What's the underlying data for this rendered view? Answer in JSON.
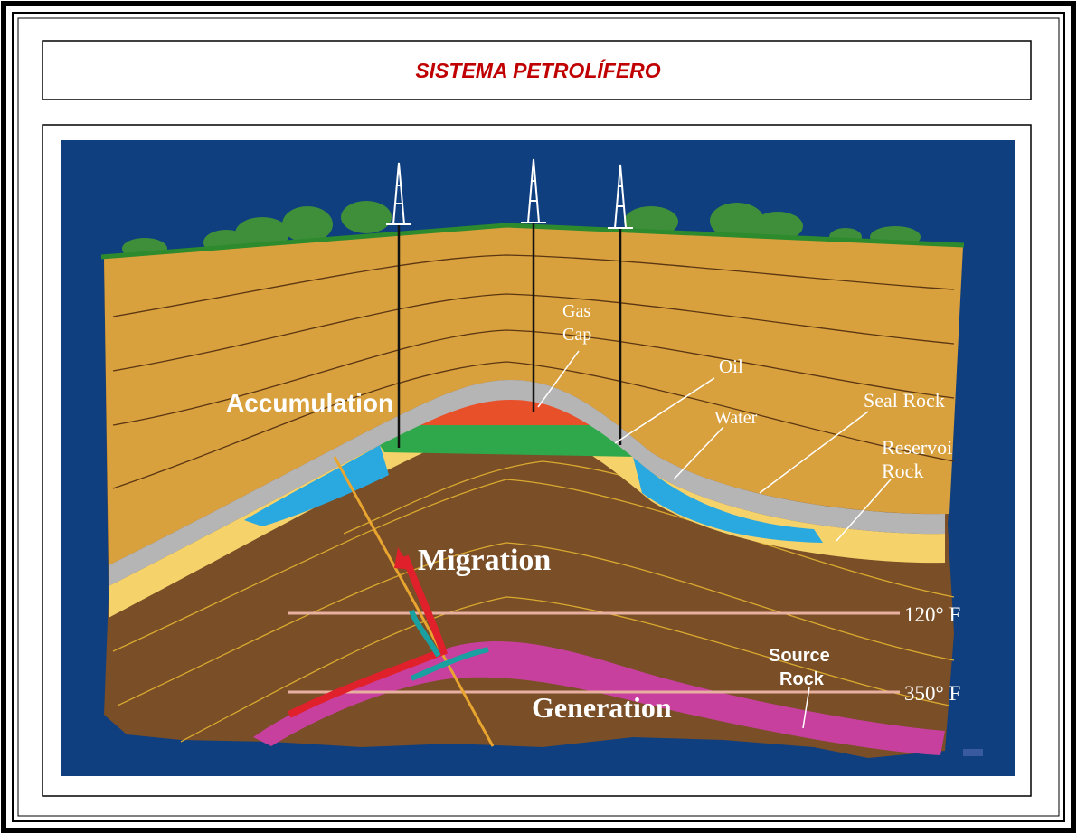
{
  "title": "SISTEMA PETROLÍFERO",
  "labels": {
    "accumulation": "Accumulation",
    "gas": "Gas",
    "cap": "Cap",
    "oil": "Oil",
    "water": "Water",
    "seal_rock": "Seal Rock",
    "reservoir": "Reservoi",
    "reservoir_rock": "Rock",
    "migration": "Migration",
    "temp_120": "120° F",
    "source": "Source",
    "source_rock": "Rock",
    "temp_350": "350° F",
    "generation": "Generation"
  }
}
